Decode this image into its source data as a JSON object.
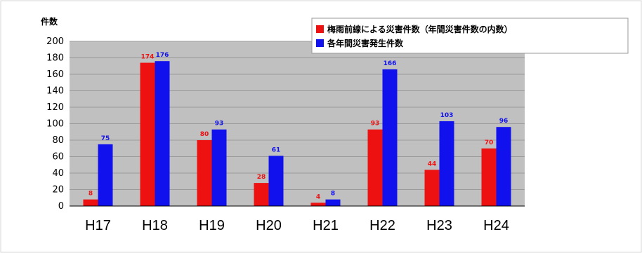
{
  "chart_data": {
    "type": "bar",
    "ylabel": "件数",
    "ylim": [
      0,
      200
    ],
    "yticks": [
      0,
      20,
      40,
      60,
      80,
      100,
      120,
      140,
      160,
      180,
      200
    ],
    "categories": [
      "H17",
      "H18",
      "H19",
      "H20",
      "H21",
      "H22",
      "H23",
      "H24"
    ],
    "series": [
      {
        "name": "梅雨前線による災害件数（年間災害件数の内数）",
        "color": "#ee1111",
        "values": [
          8,
          174,
          80,
          28,
          4,
          93,
          44,
          70
        ],
        "labels": [
          "8",
          "174",
          "80",
          "28",
          "4",
          "93",
          "44",
          "70"
        ]
      },
      {
        "name": "各年間災害発生件数",
        "color": "#1111ee",
        "values": [
          75,
          176,
          93,
          61,
          8,
          166,
          103,
          96
        ],
        "labels": [
          "75",
          "176",
          "93",
          "61",
          "8",
          "166",
          "103",
          "96"
        ]
      }
    ],
    "plot_background": "#c0c0c0",
    "grid": true,
    "legend_position": "top-right"
  }
}
